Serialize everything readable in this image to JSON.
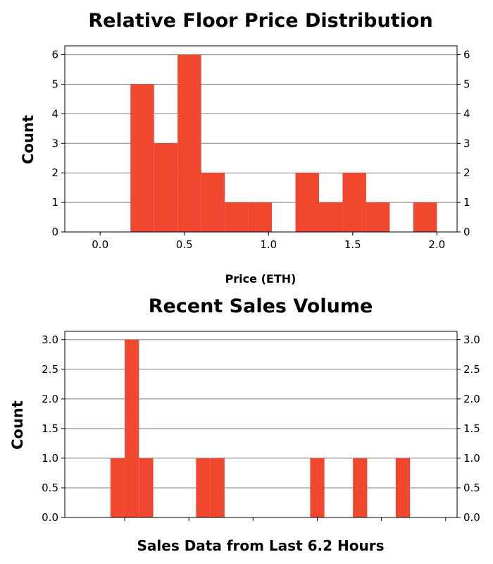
{
  "chart_data": [
    {
      "type": "bar",
      "title": "Relative Floor Price Distribution",
      "xlabel": "Price (ETH)",
      "ylabel": "Count",
      "bar_color": "#f0482f",
      "grid": true,
      "xlim": [
        -0.21,
        2.12
      ],
      "ylim": [
        0,
        6.3
      ],
      "x_ticks": [
        0.0,
        0.5,
        1.0,
        1.5,
        2.0
      ],
      "x_tick_labels": [
        "0.0",
        "0.5",
        "1.0",
        "1.5",
        "2.0"
      ],
      "y_ticks": [
        0,
        1,
        2,
        3,
        4,
        5,
        6
      ],
      "y_tick_labels": [
        "0",
        "1",
        "2",
        "3",
        "4",
        "5",
        "6"
      ],
      "right_y_tick_labels": true,
      "bins": [
        {
          "x0": 0.18,
          "x1": 0.32,
          "count": 5
        },
        {
          "x0": 0.32,
          "x1": 0.46,
          "count": 3
        },
        {
          "x0": 0.46,
          "x1": 0.6,
          "count": 6
        },
        {
          "x0": 0.6,
          "x1": 0.74,
          "count": 2
        },
        {
          "x0": 0.74,
          "x1": 0.88,
          "count": 1
        },
        {
          "x0": 0.88,
          "x1": 1.02,
          "count": 1
        },
        {
          "x0": 1.16,
          "x1": 1.3,
          "count": 2
        },
        {
          "x0": 1.3,
          "x1": 1.44,
          "count": 1
        },
        {
          "x0": 1.44,
          "x1": 1.58,
          "count": 2
        },
        {
          "x0": 1.58,
          "x1": 1.72,
          "count": 1
        },
        {
          "x0": 1.86,
          "x1": 2.0,
          "count": 1
        }
      ]
    },
    {
      "type": "bar",
      "title": "Recent Sales Volume",
      "xlabel": "Sales Data from Last 6.2 Hours",
      "ylabel": "Count",
      "bar_color": "#f0482f",
      "grid": true,
      "xlim": [
        0,
        27.5
      ],
      "ylim": [
        0,
        3.14
      ],
      "x_ticks": [
        4.2,
        8.7,
        13.2,
        17.7,
        22.2,
        26.7
      ],
      "x_tick_labels": [
        "",
        "",
        "",
        "",
        "",
        ""
      ],
      "y_ticks": [
        0.0,
        0.5,
        1.0,
        1.5,
        2.0,
        2.5,
        3.0
      ],
      "y_tick_labels": [
        "0.0",
        "0.5",
        "1.0",
        "1.5",
        "2.0",
        "2.5",
        "3.0"
      ],
      "right_y_tick_labels": true,
      "bins": [
        {
          "x0": 3.2,
          "x1": 4.2,
          "count": 1
        },
        {
          "x0": 4.2,
          "x1": 5.2,
          "count": 3
        },
        {
          "x0": 5.2,
          "x1": 6.2,
          "count": 1
        },
        {
          "x0": 9.2,
          "x1": 10.2,
          "count": 1
        },
        {
          "x0": 10.2,
          "x1": 11.2,
          "count": 1
        },
        {
          "x0": 17.2,
          "x1": 18.2,
          "count": 1
        },
        {
          "x0": 20.2,
          "x1": 21.2,
          "count": 1
        },
        {
          "x0": 23.2,
          "x1": 24.2,
          "count": 1
        }
      ]
    }
  ]
}
